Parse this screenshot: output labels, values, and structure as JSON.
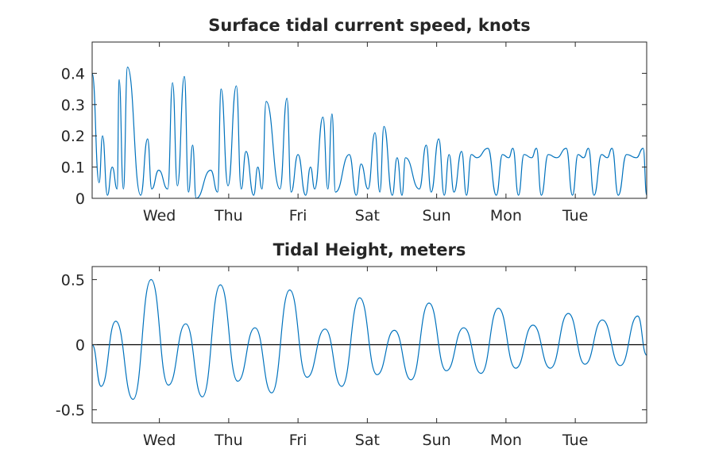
{
  "colors": {
    "series": "#0072BD",
    "axis": "#262626",
    "zero_line": "#000000",
    "background": "#ffffff"
  },
  "chart_data": [
    {
      "type": "line",
      "title": "Surface tidal current speed, knots",
      "xlabel": "",
      "ylabel": "",
      "x_tick_labels": [
        "Wed",
        "Thu",
        "Fri",
        "Sat",
        "Sun",
        "Mon",
        "Tue"
      ],
      "x_tick_days": [
        1,
        2,
        3,
        4,
        5,
        6,
        7
      ],
      "xlim_days": [
        0.03,
        8.03
      ],
      "y_ticks": [
        0,
        0.1,
        0.2,
        0.3,
        0.4
      ],
      "y_tick_labels": [
        "0",
        "0.1",
        "0.2",
        "0.3",
        "0.4"
      ],
      "ylim": [
        0,
        0.5
      ],
      "grid": false,
      "series": [
        {
          "x_days": [
            0.03,
            0.13,
            0.18,
            0.25,
            0.32,
            0.39,
            0.42,
            0.48,
            0.54,
            0.73,
            0.83,
            0.89,
            0.99,
            1.12,
            1.19,
            1.26,
            1.36,
            1.42,
            1.48,
            1.53,
            1.74,
            1.84,
            1.89,
            1.99,
            2.11,
            2.18,
            2.25,
            2.36,
            2.42,
            2.48,
            2.54,
            2.74,
            2.84,
            2.9,
            3.0,
            3.11,
            3.18,
            3.24,
            3.36,
            3.43,
            3.49,
            3.54,
            3.74,
            3.84,
            3.91,
            4.01,
            4.11,
            4.18,
            4.24,
            4.36,
            4.43,
            4.5,
            4.55,
            4.75,
            4.85,
            4.92,
            5.03,
            5.11,
            5.18,
            5.25,
            5.36,
            5.43,
            5.5,
            5.58,
            5.74,
            5.86,
            5.95,
            6.04,
            6.1,
            6.18,
            6.26,
            6.37,
            6.44,
            6.51,
            6.61,
            6.73,
            6.87,
            6.96,
            7.04,
            7.12,
            7.19,
            7.27,
            7.38,
            7.46,
            7.53,
            7.62,
            7.74,
            7.88,
            7.98,
            8.03
          ],
          "values": [
            0.4,
            0.05,
            0.2,
            0.01,
            0.1,
            0.03,
            0.38,
            0.03,
            0.42,
            0.01,
            0.19,
            0.03,
            0.09,
            0.03,
            0.37,
            0.04,
            0.39,
            0.02,
            0.17,
            0.0,
            0.09,
            0.02,
            0.35,
            0.04,
            0.36,
            0.03,
            0.15,
            0.01,
            0.1,
            0.03,
            0.31,
            0.03,
            0.32,
            0.02,
            0.14,
            0.01,
            0.1,
            0.03,
            0.26,
            0.03,
            0.27,
            0.02,
            0.14,
            0.01,
            0.11,
            0.03,
            0.21,
            0.02,
            0.23,
            0.01,
            0.13,
            0.01,
            0.13,
            0.03,
            0.17,
            0.02,
            0.19,
            0.01,
            0.14,
            0.02,
            0.15,
            0.01,
            0.14,
            0.13,
            0.16,
            0.01,
            0.14,
            0.13,
            0.16,
            0.01,
            0.14,
            0.13,
            0.16,
            0.01,
            0.14,
            0.13,
            0.16,
            0.01,
            0.14,
            0.13,
            0.16,
            0.01,
            0.14,
            0.13,
            0.16,
            0.01,
            0.14,
            0.13,
            0.16,
            0.01
          ]
        }
      ]
    },
    {
      "type": "line",
      "title": "Tidal Height, meters",
      "xlabel": "",
      "ylabel": "",
      "x_tick_labels": [
        "Wed",
        "Thu",
        "Fri",
        "Sat",
        "Sun",
        "Mon",
        "Tue"
      ],
      "x_tick_days": [
        1,
        2,
        3,
        4,
        5,
        6,
        7
      ],
      "xlim_days": [
        0.03,
        8.03
      ],
      "y_ticks": [
        -0.5,
        0,
        0.5
      ],
      "y_tick_labels": [
        "-0.5",
        "0",
        "0.5"
      ],
      "ylim": [
        -0.6,
        0.6
      ],
      "grid": false,
      "zero_line": true,
      "series": [
        {
          "x_days": [
            0.03,
            0.16,
            0.37,
            0.62,
            0.88,
            1.13,
            1.38,
            1.62,
            1.88,
            2.13,
            2.38,
            2.62,
            2.88,
            3.13,
            3.39,
            3.63,
            3.89,
            4.14,
            4.39,
            4.63,
            4.89,
            5.14,
            5.39,
            5.64,
            5.89,
            6.14,
            6.39,
            6.64,
            6.9,
            7.14,
            7.39,
            7.65,
            7.9,
            8.03
          ],
          "values": [
            0.0,
            -0.32,
            0.18,
            -0.42,
            0.5,
            -0.31,
            0.16,
            -0.4,
            0.46,
            -0.28,
            0.13,
            -0.37,
            0.42,
            -0.25,
            0.12,
            -0.32,
            0.36,
            -0.23,
            0.11,
            -0.27,
            0.32,
            -0.2,
            0.13,
            -0.22,
            0.28,
            -0.18,
            0.15,
            -0.18,
            0.24,
            -0.15,
            0.19,
            -0.16,
            0.22,
            -0.08
          ]
        }
      ]
    }
  ]
}
